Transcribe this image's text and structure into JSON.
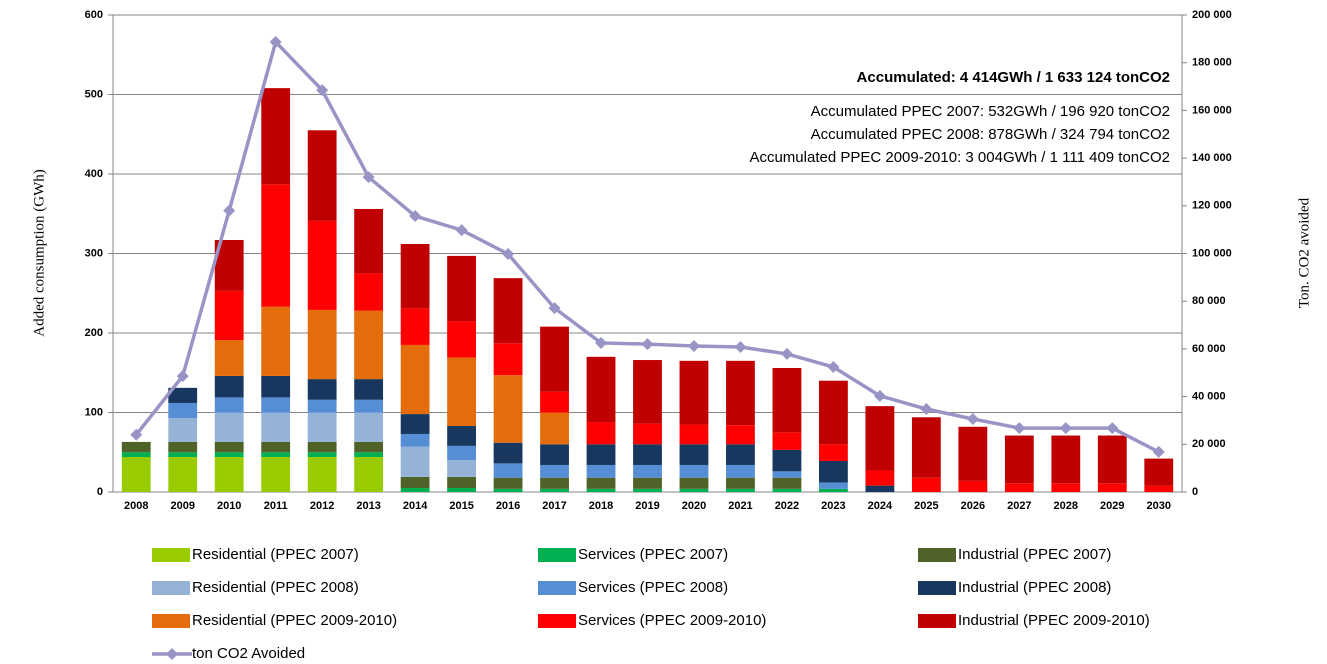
{
  "chart_data": {
    "type": "stacked_bar_line",
    "y_label": "Added consumption (GWh)",
    "y2_label": "Ton. CO2 avoided",
    "annotations": [
      "Accumulated: 4 414GWh / 1 633 124 tonCO2",
      "Accumulated PPEC 2007: 532GWh / 196 920 tonCO2",
      "Accumulated PPEC 2008: 878GWh / 324 794 tonCO2",
      "Accumulated PPEC 2009-2010: 3 004GWh / 1 111 409 tonCO2"
    ],
    "categories": [
      "2008",
      "2009",
      "2010",
      "2011",
      "2012",
      "2013",
      "2014",
      "2015",
      "2016",
      "2017",
      "2018",
      "2019",
      "2020",
      "2021",
      "2022",
      "2023",
      "2024",
      "2025",
      "2026",
      "2027",
      "2028",
      "2029",
      "2030"
    ],
    "ylim": [
      0,
      600
    ],
    "yticks": [
      0,
      100,
      200,
      300,
      400,
      500,
      600
    ],
    "y2lim": [
      0,
      200000
    ],
    "y2ticks": [
      0,
      {
        "value": 20000,
        "label": "20 000"
      },
      {
        "value": 40000,
        "label": "40 000"
      },
      {
        "value": 60000,
        "label": "60 000"
      },
      {
        "value": 80000,
        "label": "80 000"
      },
      {
        "value": 100000,
        "label": "100 000"
      },
      {
        "value": 120000,
        "label": "120 000"
      },
      {
        "value": 140000,
        "label": "140 000"
      },
      {
        "value": 160000,
        "label": "160 000"
      },
      {
        "value": 180000,
        "label": "180 000"
      },
      {
        "value": 200000,
        "label": "200 000"
      }
    ],
    "grid": true,
    "series": [
      {
        "name": "Residential (PPEC 2007)",
        "color": "#99cc00",
        "values": [
          44,
          44,
          44,
          44,
          44,
          44,
          0,
          0,
          0,
          0,
          0,
          0,
          0,
          0,
          0,
          0,
          0,
          0,
          0,
          0,
          0,
          0,
          0
        ]
      },
      {
        "name": "Services (PPEC 2007)",
        "color": "#00b050",
        "values": [
          6,
          6,
          6,
          6,
          6,
          6,
          5,
          5,
          4,
          4,
          4,
          4,
          4,
          4,
          4,
          4,
          0,
          0,
          0,
          0,
          0,
          0,
          0
        ]
      },
      {
        "name": "Industrial (PPEC 2007)",
        "color": "#4f6228",
        "values": [
          13,
          13,
          13,
          13,
          13,
          13,
          14,
          14,
          14,
          14,
          14,
          14,
          14,
          14,
          14,
          0,
          0,
          0,
          0,
          0,
          0,
          0,
          0
        ]
      },
      {
        "name": "Residential (PPEC 2008)",
        "color": "#95b3d7",
        "values": [
          0,
          30,
          37,
          37,
          37,
          37,
          38,
          21,
          0,
          0,
          0,
          0,
          0,
          0,
          0,
          0,
          0,
          0,
          0,
          0,
          0,
          0,
          0
        ]
      },
      {
        "name": "Services (PPEC 2008)",
        "color": "#558ed5",
        "values": [
          0,
          19,
          19,
          19,
          16,
          16,
          16,
          18,
          18,
          16,
          16,
          16,
          16,
          16,
          8,
          8,
          0,
          0,
          0,
          0,
          0,
          0,
          0
        ]
      },
      {
        "name": "Industrial (PPEC 2008)",
        "color": "#17375e",
        "values": [
          0,
          19,
          27,
          27,
          26,
          26,
          25,
          25,
          26,
          26,
          26,
          26,
          26,
          26,
          27,
          27,
          8,
          0,
          0,
          0,
          0,
          0,
          0
        ]
      },
      {
        "name": "Residential (PPEC 2009-2010)",
        "color": "#e46c0a",
        "values": [
          0,
          0,
          45,
          87,
          87,
          86,
          87,
          86,
          85,
          40,
          0,
          0,
          0,
          0,
          0,
          0,
          0,
          0,
          0,
          0,
          0,
          0,
          0
        ]
      },
      {
        "name": "Services (PPEC 2009-2010)",
        "color": "#ff0000",
        "values": [
          0,
          0,
          62,
          154,
          112,
          47,
          46,
          46,
          40,
          26,
          28,
          26,
          25,
          24,
          22,
          21,
          19,
          18,
          14,
          11,
          11,
          11,
          8
        ]
      },
      {
        "name": "Industrial (PPEC 2009-2010)",
        "color": "#c00000",
        "values": [
          0,
          0,
          64,
          121,
          114,
          81,
          81,
          82,
          82,
          82,
          82,
          80,
          80,
          81,
          81,
          80,
          81,
          76,
          68,
          60,
          60,
          60,
          34
        ]
      },
      {
        "name": "ton CO2 Avoided",
        "color": "#9994c6",
        "axis": "y2",
        "values": [
          24000,
          48600,
          118000,
          188700,
          168500,
          132000,
          115700,
          109800,
          99800,
          77100,
          62500,
          62000,
          61200,
          60800,
          57900,
          52400,
          40300,
          34800,
          30600,
          26800,
          26800,
          26800,
          16800
        ]
      }
    ]
  }
}
